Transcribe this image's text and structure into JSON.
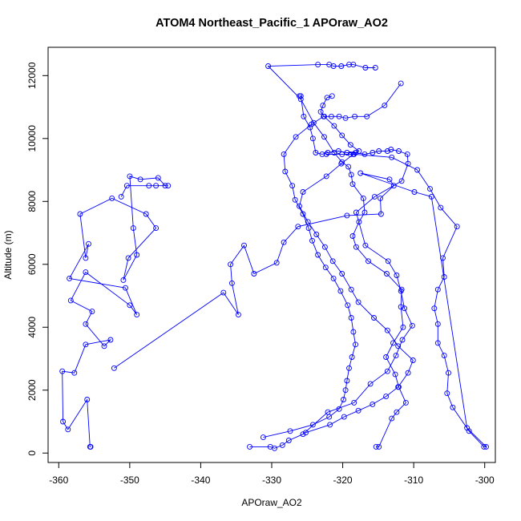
{
  "chart_data": {
    "type": "scatter",
    "title": "ATOM4 Northeast_Pacific_1 APOraw_AO2",
    "xlabel": "APOraw_AO2",
    "ylabel": "Altitude (m)",
    "xlim": [
      -361.5,
      -298.5
    ],
    "ylim": [
      -300,
      12900
    ],
    "xticks": [
      -360,
      -350,
      -340,
      -330,
      -320,
      -310,
      -300
    ],
    "yticks": [
      0,
      2000,
      4000,
      6000,
      8000,
      10000,
      12000
    ],
    "grid": false,
    "legend": "none",
    "color": "#0000ff",
    "style": "lines+open-circles",
    "series": [
      {
        "name": "",
        "x": [
          -355.5,
          -355.6,
          -356,
          -358.7,
          -359.4,
          -359.5,
          -357.8,
          -356.2,
          -352.7,
          -353.6,
          -356.2,
          -355.3,
          -358.3,
          -356.2,
          -350,
          -349,
          -350.6,
          -358.5,
          -355.8,
          -356.2,
          -357,
          -352.5,
          -347.7,
          -346.3,
          -350.2,
          -350.9,
          -349,
          -349.5,
          -350,
          -348.5,
          -346,
          -345,
          -346.3,
          -344.6,
          -347.3,
          -350.4,
          -351.2
        ],
        "y": [
          200,
          200,
          1700,
          750,
          1000,
          2600,
          2550,
          3450,
          3600,
          3400,
          4100,
          4500,
          4850,
          5750,
          4700,
          4400,
          5250,
          5550,
          6650,
          6200,
          7600,
          8100,
          7600,
          7150,
          6200,
          5500,
          6300,
          7150,
          8800,
          8700,
          8750,
          8500,
          8500,
          8500,
          8500,
          8500,
          8150
        ]
      },
      {
        "name": "",
        "x": [
          -352.2,
          -336.8,
          -334.7,
          -335.6,
          -335.8,
          -333.9,
          -332.5,
          -329.3,
          -328.3,
          -326.3,
          -319.4,
          -314.6,
          -314.7,
          -312.8,
          -313.4,
          -317.5,
          -309.9,
          -307.5,
          -302.5,
          -299.8,
          -300.1,
          -302.2,
          -304.5,
          -305.3,
          -305.1,
          -305.7,
          -306.6,
          -306.6,
          -307.1,
          -306.6,
          -305.7,
          -305.9,
          -303.9,
          -306.2,
          -307.7,
          -309.5,
          -313.1,
          -318.4,
          -318.9,
          -320.1,
          -322.3
        ],
        "y": [
          2700,
          5100,
          4400,
          5400,
          6000,
          6600,
          5700,
          6050,
          6700,
          7200,
          7550,
          7600,
          8100,
          8500,
          8700,
          8900,
          8300,
          8150,
          800,
          200,
          200,
          700,
          1450,
          1900,
          2550,
          3100,
          3500,
          4100,
          4600,
          5200,
          5600,
          6200,
          7200,
          7800,
          8400,
          9000,
          9400,
          9500,
          9500,
          9500,
          9500
        ]
      },
      {
        "name": "",
        "x": [
          -333.1,
          -330.2,
          -329.6,
          -328.5,
          -327.6,
          -325.6,
          -322.1,
          -318.4,
          -316.1,
          -313.7,
          -312.5,
          -311.6,
          -310.2,
          -311.3,
          -311.8,
          -312.4,
          -313.6,
          -316.8,
          -318.1,
          -315.5,
          -311.7,
          -310.8,
          -310.9,
          -312.1,
          -313.2,
          -313.7,
          -314.9,
          -315.8,
          -316.9,
          -318.2,
          -319.4,
          -320.6,
          -322.1,
          -322.9,
          -323.8,
          -324.2,
          -324.6,
          -325.5,
          -325.9,
          -326.1
        ],
        "y": [
          200,
          200,
          150,
          250,
          400,
          600,
          1300,
          1600,
          2200,
          2600,
          3100,
          3600,
          4050,
          4600,
          5150,
          5650,
          6100,
          6600,
          7650,
          8150,
          8650,
          9200,
          9500,
          9600,
          9650,
          9600,
          9600,
          9550,
          9500,
          9550,
          9550,
          9600,
          9550,
          9500,
          9550,
          10000,
          10350,
          10700,
          11350,
          11350
        ]
      },
      {
        "name": "",
        "x": [
          -315.3,
          -314.9,
          -313.1,
          -312.4,
          -311.1,
          -312.1,
          -312.6,
          -313.9,
          -312.9,
          -311.5,
          -311.8,
          -311.7,
          -313.8,
          -316.4,
          -318.1,
          -318.6,
          -317.7,
          -316.9,
          -317.1,
          -318.6,
          -318.8,
          -319.2,
          -320.1,
          -321.2,
          -322.6,
          -324.1,
          -325.9,
          -330.5,
          -323.5,
          -321.9,
          -321.3,
          -320.2,
          -319.1,
          -318.5,
          -316.8,
          -315.4
        ],
        "y": [
          200,
          200,
          1100,
          1300,
          1600,
          2100,
          2500,
          3050,
          3500,
          4000,
          4650,
          5200,
          5700,
          6100,
          6550,
          6900,
          7350,
          7650,
          8100,
          8550,
          8850,
          9100,
          9250,
          9550,
          10050,
          10500,
          11250,
          12300,
          12350,
          12350,
          12300,
          12300,
          12350,
          12350,
          12250,
          12250
        ]
      },
      {
        "name": "",
        "x": [
          -331.2,
          -327.4,
          -324.2,
          -321.9,
          -320.5,
          -319.9,
          -319.6,
          -319.4,
          -319.1,
          -318.7,
          -318.2,
          -318.5,
          -318.8,
          -319.3,
          -320.3,
          -321.3,
          -322.4,
          -323.5,
          -324.3,
          -324.8,
          -325.6,
          -326.7,
          -327.1,
          -328.1,
          -328.3,
          -326.6,
          -324.4,
          -322.7,
          -321.6,
          -320.5,
          -319.6,
          -318.3,
          -316.6,
          -314.1,
          -311.8
        ],
        "y": [
          500,
          700,
          900,
          1150,
          1400,
          1700,
          2000,
          2300,
          2700,
          3050,
          3450,
          3850,
          4300,
          4700,
          5150,
          5550,
          5900,
          6300,
          6750,
          7150,
          7600,
          8050,
          8500,
          8950,
          9500,
          10050,
          10450,
          10700,
          10700,
          10700,
          10650,
          10700,
          10700,
          11050,
          11750
        ]
      },
      {
        "name": "",
        "x": [
          -325.2,
          -321.8,
          -319.8,
          -317.8,
          -315.8,
          -313.9,
          -312.2,
          -310.8,
          -310.1,
          -312.2,
          -313.7,
          -315.6,
          -317.8,
          -318.8,
          -320.1,
          -321.4,
          -322.5,
          -323.7,
          -324.9,
          -326.1,
          -325.6,
          -322.3,
          -320.2,
          -318.5,
          -317.7,
          -318.9,
          -320.1,
          -321.2,
          -322.6,
          -323.1,
          -322.8,
          -322.2,
          -321.5
        ],
        "y": [
          650,
          900,
          1150,
          1350,
          1550,
          1800,
          2100,
          2550,
          2950,
          3400,
          3900,
          4300,
          4800,
          5200,
          5700,
          6100,
          6550,
          6950,
          7350,
          7850,
          8300,
          8800,
          9200,
          9500,
          9600,
          9800,
          10100,
          10400,
          10700,
          10850,
          11050,
          11300,
          11350
        ]
      }
    ]
  }
}
